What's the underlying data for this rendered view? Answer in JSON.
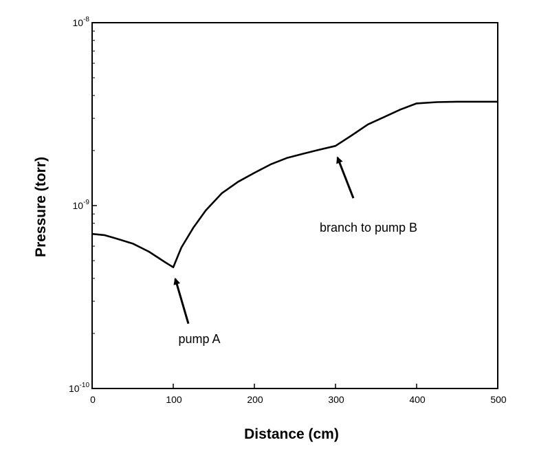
{
  "chart_data": {
    "type": "line",
    "title": "",
    "xlabel": "Distance (cm)",
    "ylabel": "Pressure (torr)",
    "xlim": [
      0,
      500
    ],
    "ylim": [
      1e-10,
      1e-08
    ],
    "y_scale": "log",
    "grid": false,
    "x_ticks": [
      0,
      100,
      200,
      300,
      400,
      500
    ],
    "x_tick_labels": [
      "0",
      "100",
      "200",
      "300",
      "400",
      "500"
    ],
    "y_ticks": [
      {
        "value": 1e-10,
        "base": "10",
        "exp": "-10"
      },
      {
        "value": 1e-09,
        "base": "10",
        "exp": "-9"
      },
      {
        "value": 1e-08,
        "base": "10",
        "exp": "-8"
      }
    ],
    "series": [
      {
        "x": [
          0,
          15,
          30,
          50,
          70,
          90,
          100,
          110,
          125,
          140,
          160,
          180,
          200,
          220,
          240,
          260,
          280,
          300,
          320,
          340,
          360,
          380,
          400,
          425,
          450,
          475,
          500
        ],
        "y": [
          7e-10,
          6.9e-10,
          6.6e-10,
          6.2e-10,
          5.6e-10,
          4.9e-10,
          4.6e-10,
          5.9e-10,
          7.6e-10,
          9.4e-10,
          1.17e-09,
          1.35e-09,
          1.51e-09,
          1.68e-09,
          1.82e-09,
          1.92e-09,
          2.02e-09,
          2.12e-09,
          2.42e-09,
          2.78e-09,
          3.05e-09,
          3.35e-09,
          3.62e-09,
          3.68e-09,
          3.7e-09,
          3.7e-09,
          3.7e-09
        ],
        "color": "#000000"
      }
    ],
    "annotations": [
      {
        "text": "pump A",
        "arrow_to_x": 100,
        "arrow_to_y": 4.6e-10
      },
      {
        "text": "branch to pump B",
        "arrow_to_x": 300,
        "arrow_to_y": 2.12e-09
      }
    ]
  }
}
